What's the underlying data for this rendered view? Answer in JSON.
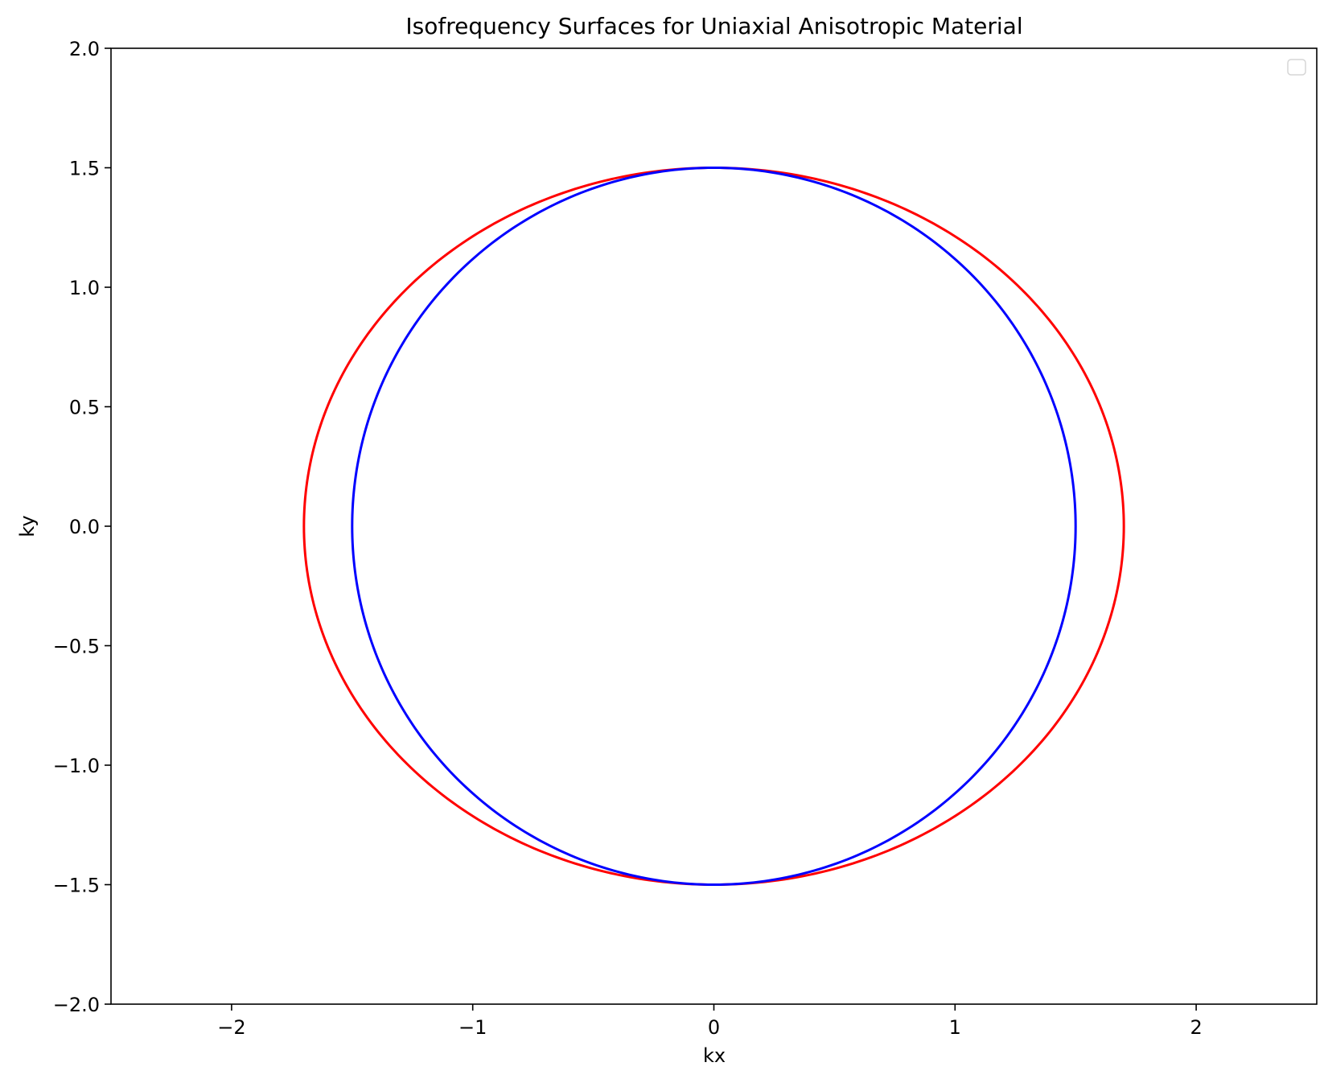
{
  "chart_data": {
    "type": "line",
    "title": "Isofrequency Surfaces for Uniaxial Anisotropic Material",
    "xlabel": "kx",
    "ylabel": "ky",
    "xlim": [
      -2.5,
      2.5
    ],
    "ylim": [
      -2.0,
      2.0
    ],
    "xticks": [
      -2,
      -1,
      0,
      1,
      2
    ],
    "xtick_labels": [
      "−2",
      "−1",
      "0",
      "1",
      "2"
    ],
    "yticks": [
      -2.0,
      -1.5,
      -1.0,
      -0.5,
      0.0,
      0.5,
      1.0,
      1.5,
      2.0
    ],
    "ytick_labels": [
      "−2.0",
      "−1.5",
      "−1.0",
      "−0.5",
      "0.0",
      "0.5",
      "1.0",
      "1.5",
      "2.0"
    ],
    "grid": false,
    "legend": {
      "placement": "upper-right",
      "entries": []
    },
    "series": [
      {
        "shape": "ellipse",
        "center": [
          0,
          0
        ],
        "semi_axis_x": 1.7,
        "semi_axis_y": 1.5,
        "color": "#ff0000"
      },
      {
        "shape": "ellipse",
        "center": [
          0,
          0
        ],
        "semi_axis_x": 1.5,
        "semi_axis_y": 1.5,
        "color": "#0000ff"
      }
    ]
  }
}
